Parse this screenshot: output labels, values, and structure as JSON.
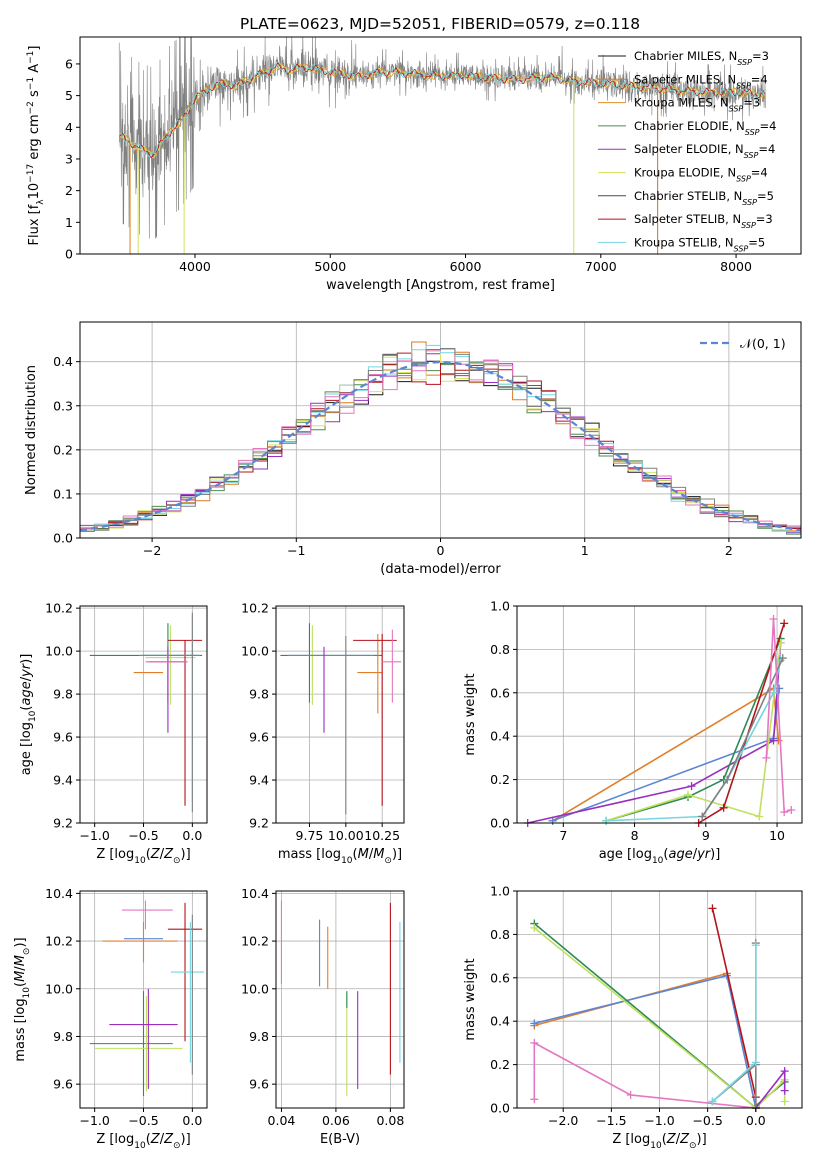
{
  "title": "PLATE=0623, MJD=52051, FIBERID=0579, z=0.118",
  "colors": {
    "Chabrier MILES": "#1a1a1a",
    "Salpeter MILES": "#d97b26",
    "Kroupa MILES": "#e08e2b",
    "Chabrier ELODIE": "#4f8a4f",
    "Salpeter ELODIE": "#9b2fc0",
    "Kroupa ELODIE": "#d7e466",
    "Chabrier STELIB": "#4a4a4a",
    "Salpeter STELIB": "#b5131c",
    "Kroupa STELIB": "#74d6e0",
    "data": "#808080",
    "pink": "#e377c2",
    "blue": "#5b86d6",
    "green": "#2e8b57",
    "lime": "#bfe060",
    "orange": "#e07f2a",
    "purple": "#9b2fc0"
  },
  "chart_data": [
    {
      "id": "spectrum",
      "type": "line",
      "title": "PLATE=0623, MJD=52051, FIBERID=0579, z=0.118",
      "xlabel": "wavelength [Angstrom, rest frame]",
      "ylabel": "Flux [f_λ 10^-17 erg cm^-2 s^-1 A^-1]",
      "xlim": [
        3150,
        8480
      ],
      "ylim": [
        0,
        6.85
      ],
      "xticks": [
        "4000",
        "5000",
        "6000",
        "7000",
        "8000"
      ],
      "yticks": [
        "0",
        "1",
        "2",
        "3",
        "4",
        "5",
        "6"
      ],
      "grid": false,
      "legend": [
        "Chabrier MILES, N_SSP=3",
        "Salpeter MILES, N_SSP=4",
        "Kroupa MILES, N_SSP=3",
        "Chabrier ELODIE, N_SSP=4",
        "Salpeter ELODIE, N_SSP=4",
        "Kroupa ELODIE, N_SSP=4",
        "Chabrier STELIB, N_SSP=5",
        "Salpeter STELIB, N_SSP=3",
        "Kroupa STELIB, N_SSP=5"
      ],
      "legend_placement": "right",
      "continuum": {
        "x": [
          3450,
          3500,
          3600,
          3700,
          3800,
          3900,
          4000,
          4100,
          4200,
          4300,
          4400,
          4500,
          4600,
          4700,
          4800,
          5000,
          5200,
          5400,
          5600,
          5800,
          6000,
          6200,
          6400,
          6600,
          6800,
          7000,
          7200,
          7400,
          7600,
          7800,
          8000,
          8200
        ],
        "y": [
          3.7,
          3.6,
          3.3,
          3.15,
          3.8,
          4.2,
          4.9,
          5.2,
          5.4,
          5.3,
          5.5,
          5.7,
          5.9,
          5.8,
          5.9,
          5.75,
          5.6,
          5.75,
          5.7,
          5.6,
          5.65,
          5.55,
          5.5,
          5.6,
          5.45,
          5.4,
          5.3,
          5.25,
          5.15,
          5.1,
          5.1,
          5.05
        ]
      }
    },
    {
      "id": "residuals",
      "type": "line",
      "xlabel": "(data-model)/error",
      "ylabel": "Normed distribution",
      "xlim": [
        -2.5,
        2.5
      ],
      "ylim": [
        0,
        0.49
      ],
      "xticks": [
        "−2",
        "−1",
        "0",
        "1",
        "2"
      ],
      "yticks": [
        "0.0",
        "0.1",
        "0.2",
        "0.3",
        "0.4"
      ],
      "grid": true,
      "legend": [
        "𝒩(0, 1)"
      ],
      "legend_placement": "top-right",
      "bin_width": 0.1
    },
    {
      "id": "age-vs-Z",
      "type": "scatter",
      "xlabel": "Z [log10(Z/Z⊙)]",
      "ylabel": "age [log10(age/yr)]",
      "xlim": [
        -1.15,
        0.15
      ],
      "ylim": [
        9.2,
        10.21
      ],
      "xticks": [
        "−1.0",
        "−0.5",
        "0.0"
      ],
      "yticks": [
        "9.2",
        "9.4",
        "9.6",
        "9.8",
        "10.0",
        "10.2"
      ],
      "grid": true,
      "bars": [
        {
          "x": -1.05,
          "xmax": 0.1,
          "y": 9.98,
          "ylo": 9.98,
          "yhi": 9.98,
          "color": "green"
        },
        {
          "x": -0.5,
          "xmax": 0.0,
          "y": 9.98,
          "ylo": 9.76,
          "yhi": 10.13,
          "color": "green"
        },
        {
          "x": -0.48,
          "xmax": 0.03,
          "y": 9.97,
          "ylo": 9.75,
          "yhi": 10.12,
          "color": "lime"
        },
        {
          "x": -0.45,
          "xmax": -0.05,
          "y": 9.95,
          "ylo": 9.62,
          "yhi": 10.02,
          "color": "purple"
        },
        {
          "x": -0.6,
          "xmax": -0.3,
          "y": 9.9,
          "ylo": 9.9,
          "yhi": 9.9,
          "color": "orange"
        },
        {
          "x": -0.25,
          "xmax": 0.1,
          "y": 10.05,
          "ylo": 9.28,
          "yhi": 10.05,
          "color": "Salpeter STELIB"
        },
        {
          "x": -0.05,
          "xmax": 0.05,
          "y": 9.98,
          "ylo": 9.3,
          "yhi": 10.16,
          "color": "Kroupa STELIB"
        },
        {
          "x": -0.48,
          "xmax": -0.05,
          "y": 9.95,
          "ylo": 9.95,
          "yhi": 9.95,
          "color": "pink"
        },
        {
          "x": -0.55,
          "xmax": 0.08,
          "y": 9.98,
          "ylo": 9.98,
          "yhi": 9.98,
          "color": "blue"
        },
        {
          "x": -0.02,
          "xmax": 0.02,
          "y": 9.98,
          "ylo": 9.25,
          "yhi": 10.18,
          "color": "data"
        }
      ]
    },
    {
      "id": "age-vs-mass",
      "type": "scatter",
      "xlabel": "mass [log10(M/M⊙)]",
      "ylabel": "",
      "xlim": [
        9.52,
        10.4
      ],
      "ylim": [
        9.2,
        10.21
      ],
      "xticks": [
        "9.75",
        "10.00",
        "10.25"
      ],
      "yticks": [
        "9.2",
        "9.4",
        "9.6",
        "9.8",
        "10.0",
        "10.2"
      ],
      "grid": true,
      "bars": [
        {
          "x": 9.55,
          "xmax": 10.25,
          "y": 9.98,
          "ylo": 9.98,
          "yhi": 9.98,
          "color": "green"
        },
        {
          "x": 9.75,
          "xmax": 9.75,
          "y": 9.98,
          "ylo": 9.76,
          "yhi": 10.13,
          "color": "green"
        },
        {
          "x": 9.77,
          "xmax": 9.77,
          "y": 9.97,
          "ylo": 9.75,
          "yhi": 10.12,
          "color": "lime"
        },
        {
          "x": 9.6,
          "xmax": 10.2,
          "y": 9.98,
          "ylo": 9.98,
          "yhi": 9.98,
          "color": "blue"
        },
        {
          "x": 9.85,
          "xmax": 9.85,
          "y": 9.95,
          "ylo": 9.62,
          "yhi": 10.02,
          "color": "purple"
        },
        {
          "x": 10.08,
          "xmax": 10.25,
          "y": 9.9,
          "ylo": 9.9,
          "yhi": 9.9,
          "color": "orange"
        },
        {
          "x": 10.22,
          "xmax": 10.22,
          "y": 9.95,
          "ylo": 9.71,
          "yhi": 10.08,
          "color": "orange"
        },
        {
          "x": 10.05,
          "xmax": 10.35,
          "y": 10.05,
          "ylo": 10.05,
          "yhi": 10.05,
          "color": "Salpeter STELIB"
        },
        {
          "x": 10.25,
          "xmax": 10.25,
          "y": 10.0,
          "ylo": 9.28,
          "yhi": 10.08,
          "color": "Salpeter STELIB"
        },
        {
          "x": 10.0,
          "xmax": 10.0,
          "y": 9.98,
          "ylo": 9.24,
          "yhi": 10.07,
          "color": "data"
        },
        {
          "x": 10.25,
          "xmax": 10.38,
          "y": 9.95,
          "ylo": 9.95,
          "yhi": 9.95,
          "color": "pink"
        },
        {
          "x": 10.32,
          "xmax": 10.32,
          "y": 9.95,
          "ylo": 9.76,
          "yhi": 10.1,
          "color": "pink"
        }
      ]
    },
    {
      "id": "weight-vs-age",
      "type": "line",
      "xlabel": "age [log10(age/yr)]",
      "ylabel": "mass weight",
      "xlim": [
        6.35,
        10.35
      ],
      "ylim": [
        0,
        1.0
      ],
      "xticks": [
        "7",
        "8",
        "9",
        "10"
      ],
      "yticks": [
        "0.0",
        "0.2",
        "0.4",
        "0.6",
        "0.8",
        "1.0"
      ],
      "grid": true,
      "series": [
        {
          "color": "orange",
          "x": [
            6.85,
            9.95,
            10.02
          ],
          "y": [
            0.01,
            0.62,
            0.38
          ]
        },
        {
          "color": "blue",
          "x": [
            6.85,
            9.95,
            10.03
          ],
          "y": [
            0.01,
            0.39,
            0.62
          ]
        },
        {
          "color": "purple",
          "x": [
            6.5,
            8.8,
            9.95,
            10.05
          ],
          "y": [
            0.0,
            0.17,
            0.38,
            0.83
          ]
        },
        {
          "color": "green",
          "x": [
            7.6,
            8.75,
            9.25,
            10.05
          ],
          "y": [
            0.01,
            0.12,
            0.2,
            0.85
          ]
        },
        {
          "color": "lime",
          "x": [
            7.6,
            8.75,
            9.75,
            10.05
          ],
          "y": [
            0.01,
            0.13,
            0.03,
            0.83
          ]
        },
        {
          "color": "Salpeter STELIB",
          "x": [
            8.9,
            9.25,
            10.1
          ],
          "y": [
            0.0,
            0.07,
            0.92
          ]
        },
        {
          "color": "Kroupa STELIB",
          "x": [
            7.6,
            8.95,
            9.3,
            9.95,
            10.05
          ],
          "y": [
            0.01,
            0.03,
            0.2,
            0.6,
            0.75
          ]
        },
        {
          "color": "data",
          "x": [
            8.95,
            9.3,
            10.08
          ],
          "y": [
            0.03,
            0.2,
            0.76
          ]
        },
        {
          "color": "pink",
          "x": [
            9.85,
            9.95,
            10.1,
            10.2
          ],
          "y": [
            0.3,
            0.94,
            0.05,
            0.06
          ]
        }
      ]
    },
    {
      "id": "mass-vs-Z",
      "type": "scatter",
      "xlabel": "Z [log10(Z/Z⊙)]",
      "ylabel": "mass [log10(M/M⊙)]",
      "xlim": [
        -1.15,
        0.15
      ],
      "ylim": [
        9.5,
        10.41
      ],
      "xticks": [
        "−1.0",
        "−0.5",
        "0.0"
      ],
      "yticks": [
        "9.6",
        "9.8",
        "10.0",
        "10.2",
        "10.4"
      ],
      "grid": true,
      "bars": [
        {
          "x": -0.72,
          "xmax": -0.2,
          "y": 10.33,
          "ylo": 10.33,
          "yhi": 10.33,
          "color": "pink"
        },
        {
          "x": -0.48,
          "xmax": -0.48,
          "y": 10.33,
          "ylo": 10.25,
          "yhi": 10.37,
          "color": "pink"
        },
        {
          "x": -0.7,
          "xmax": -0.3,
          "y": 10.21,
          "ylo": 10.21,
          "yhi": 10.21,
          "color": "blue"
        },
        {
          "x": -0.92,
          "xmax": -0.15,
          "y": 10.2,
          "ylo": 10.2,
          "yhi": 10.2,
          "color": "orange"
        },
        {
          "x": -0.5,
          "xmax": -0.5,
          "y": 10.2,
          "ylo": 10.11,
          "yhi": 10.28,
          "color": "orange"
        },
        {
          "x": -0.25,
          "xmax": 0.1,
          "y": 10.25,
          "ylo": 9.78,
          "yhi": 10.36,
          "color": "Salpeter STELIB"
        },
        {
          "x": -0.22,
          "xmax": 0.12,
          "y": 10.07,
          "ylo": 10.07,
          "yhi": 10.07,
          "color": "Kroupa STELIB"
        },
        {
          "x": -0.02,
          "xmax": -0.02,
          "y": 10.07,
          "ylo": 9.69,
          "yhi": 10.28,
          "color": "Kroupa STELIB"
        },
        {
          "x": 0.0,
          "xmax": 0.0,
          "y": 10.07,
          "ylo": 9.64,
          "yhi": 10.31,
          "color": "data"
        },
        {
          "x": -0.5,
          "xmax": -0.5,
          "y": 9.77,
          "ylo": 9.55,
          "yhi": 9.99,
          "color": "green"
        },
        {
          "x": -1.05,
          "xmax": -0.2,
          "y": 9.77,
          "ylo": 9.77,
          "yhi": 9.77,
          "color": "green"
        },
        {
          "x": -1.0,
          "xmax": -0.1,
          "y": 9.75,
          "ylo": 9.75,
          "yhi": 9.75,
          "color": "lime"
        },
        {
          "x": -0.47,
          "xmax": -0.47,
          "y": 9.75,
          "ylo": 9.57,
          "yhi": 9.97,
          "color": "lime"
        },
        {
          "x": -0.85,
          "xmax": -0.15,
          "y": 9.85,
          "ylo": 9.85,
          "yhi": 9.85,
          "color": "purple"
        },
        {
          "x": -0.45,
          "xmax": -0.45,
          "y": 9.85,
          "ylo": 9.58,
          "yhi": 10.0,
          "color": "purple"
        }
      ]
    },
    {
      "id": "mass-vs-ebv",
      "type": "scatter",
      "xlabel": "E(B-V)",
      "ylabel": "",
      "xlim": [
        0.038,
        0.085
      ],
      "ylim": [
        9.5,
        10.41
      ],
      "xticks": [
        "0.04",
        "0.06",
        "0.08"
      ],
      "yticks": [
        "9.6",
        "9.8",
        "10.0",
        "10.2",
        "10.4"
      ],
      "grid": true,
      "bars": [
        {
          "x": 0.04,
          "xmax": 0.04,
          "y": 10.2,
          "ylo": 10.02,
          "yhi": 10.37,
          "color": "pink"
        },
        {
          "x": 0.054,
          "xmax": 0.054,
          "y": 10.15,
          "ylo": 10.01,
          "yhi": 10.29,
          "color": "blue"
        },
        {
          "x": 0.057,
          "xmax": 0.057,
          "y": 10.13,
          "ylo": 10.0,
          "yhi": 10.26,
          "color": "orange"
        },
        {
          "x": 0.064,
          "xmax": 0.064,
          "y": 9.8,
          "ylo": 9.55,
          "yhi": 9.98,
          "color": "lime"
        },
        {
          "x": 0.064,
          "xmax": 0.064,
          "y": 9.97,
          "ylo": 9.92,
          "yhi": 9.99,
          "color": "green"
        },
        {
          "x": 0.068,
          "xmax": 0.068,
          "y": 9.8,
          "ylo": 9.58,
          "yhi": 9.99,
          "color": "purple"
        },
        {
          "x": 0.08,
          "xmax": 0.08,
          "y": 10.0,
          "ylo": 9.64,
          "yhi": 10.36,
          "color": "Salpeter STELIB"
        },
        {
          "x": 0.0835,
          "xmax": 0.0835,
          "y": 10.0,
          "ylo": 9.69,
          "yhi": 10.28,
          "color": "Kroupa STELIB"
        }
      ]
    },
    {
      "id": "weight-vs-Z",
      "type": "line",
      "xlabel": "Z [log10(Z/Z⊙)]",
      "ylabel": "mass weight",
      "xlim": [
        -2.48,
        0.48
      ],
      "ylim": [
        0,
        1.0
      ],
      "xticks": [
        "−2.0",
        "−1.5",
        "−1.0",
        "−0.5",
        "0.0"
      ],
      "yticks": [
        "0.0",
        "0.2",
        "0.4",
        "0.6",
        "0.8",
        "1.0"
      ],
      "grid": true,
      "series": [
        {
          "color": "orange",
          "x": [
            -2.3,
            -0.3,
            0.0
          ],
          "y": [
            0.38,
            0.62,
            0.0
          ]
        },
        {
          "color": "blue",
          "x": [
            -2.3,
            -0.3,
            0.0
          ],
          "y": [
            0.39,
            0.61,
            0.0
          ]
        },
        {
          "color": "green",
          "x": [
            -2.3,
            0.0,
            0.0,
            0.3
          ],
          "y": [
            0.85,
            0.0,
            0.01,
            0.12
          ]
        },
        {
          "color": "lime",
          "x": [
            -2.3,
            0.0,
            0.3,
            0.3
          ],
          "y": [
            0.83,
            0.0,
            0.13,
            0.03
          ]
        },
        {
          "color": "purple",
          "x": [
            0.0,
            0.3,
            0.3
          ],
          "y": [
            0.0,
            0.17,
            0.08
          ]
        },
        {
          "color": "pink",
          "x": [
            -2.3,
            -2.3,
            -1.3,
            0.0
          ],
          "y": [
            0.04,
            0.3,
            0.06,
            0.0
          ]
        },
        {
          "color": "Salpeter STELIB",
          "x": [
            -0.45,
            0.0,
            0.0
          ],
          "y": [
            0.92,
            0.05,
            0.0
          ]
        },
        {
          "color": "data",
          "x": [
            -0.45,
            0.0,
            0.0,
            0.0
          ],
          "y": [
            0.03,
            0.2,
            0.76,
            0.0
          ]
        },
        {
          "color": "Kroupa STELIB",
          "x": [
            -0.45,
            0.0,
            0.0
          ],
          "y": [
            0.03,
            0.21,
            0.75
          ]
        }
      ]
    }
  ]
}
